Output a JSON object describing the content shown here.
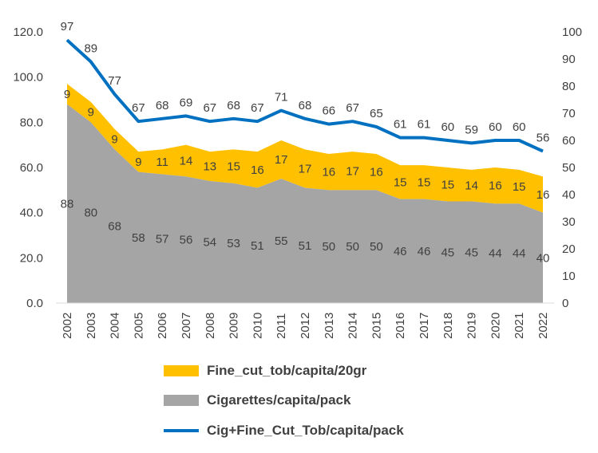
{
  "chart_data": {
    "type": "area+line",
    "categories": [
      "2002",
      "2003",
      "2004",
      "2005",
      "2006",
      "2007",
      "2008",
      "2009",
      "2010",
      "2011",
      "2012",
      "2013",
      "2014",
      "2015",
      "2016",
      "2017",
      "2018",
      "2019",
      "2020",
      "2021",
      "2022"
    ],
    "series": [
      {
        "name": "Fine_cut_tob/capita/20gr",
        "type": "stacked-area",
        "axis": "left",
        "color": "#FFC000",
        "values": [
          9,
          9,
          9,
          9,
          11,
          14,
          13,
          15,
          16,
          17,
          17,
          16,
          17,
          16,
          15,
          15,
          15,
          14,
          16,
          15,
          16
        ]
      },
      {
        "name": "Cigarettes/capita/pack",
        "type": "stacked-area",
        "axis": "left",
        "color": "#A5A5A5",
        "values": [
          88,
          80,
          68,
          58,
          57,
          56,
          54,
          53,
          51,
          55,
          51,
          50,
          50,
          50,
          46,
          46,
          45,
          45,
          44,
          44,
          40
        ]
      },
      {
        "name": "Cig+Fine_Cut_Tob/capita/pack",
        "type": "line",
        "axis": "right",
        "color": "#0070C0",
        "values": [
          97,
          89,
          77,
          67,
          68,
          69,
          67,
          68,
          67,
          71,
          68,
          66,
          67,
          65,
          61,
          61,
          60,
          59,
          60,
          60,
          56
        ]
      }
    ],
    "left_axis": {
      "ylim": [
        0,
        120
      ],
      "ticks": [
        "0.0",
        "20.0",
        "40.0",
        "60.0",
        "80.0",
        "100.0",
        "120.0"
      ]
    },
    "right_axis": {
      "ylim": [
        0,
        100
      ],
      "ticks": [
        "0",
        "10",
        "20",
        "30",
        "40",
        "50",
        "60",
        "70",
        "80",
        "90",
        "100"
      ]
    },
    "grid": false,
    "legend_position": "bottom"
  }
}
